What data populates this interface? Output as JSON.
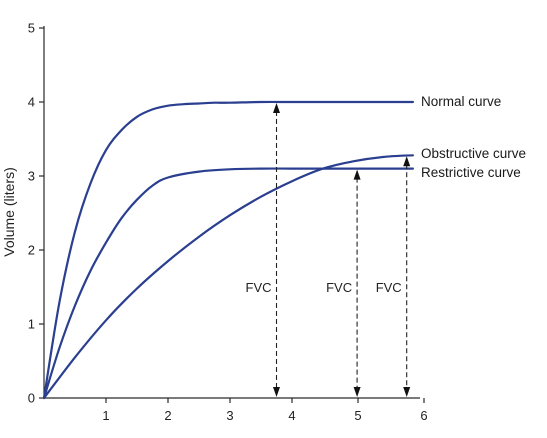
{
  "chart_data": {
    "type": "line",
    "title": "",
    "xlabel": "",
    "ylabel": "Volume (liters)",
    "xlim": [
      0,
      6
    ],
    "ylim": [
      0,
      5
    ],
    "xticks": [
      "1",
      "2",
      "3",
      "4",
      "5",
      "6"
    ],
    "yticks": [
      "0",
      "1",
      "2",
      "3",
      "4",
      "5"
    ],
    "grid": false,
    "series": [
      {
        "name": "Normal curve",
        "color": "#2a3f8f",
        "x": [
          0,
          0.25,
          0.5,
          0.75,
          1.0,
          1.25,
          1.5,
          1.75,
          2.0,
          2.25,
          2.5,
          2.75,
          3.0,
          3.5,
          4.0,
          4.5,
          5.0,
          5.5,
          5.95
        ],
        "y": [
          0,
          1.3,
          2.25,
          2.9,
          3.35,
          3.62,
          3.8,
          3.9,
          3.95,
          3.97,
          3.98,
          3.99,
          3.99,
          4.0,
          4.0,
          4.0,
          4.0,
          4.0,
          4.0
        ]
      },
      {
        "name": "Obstructive curve",
        "color": "#2a3f8f",
        "x": [
          0,
          0.5,
          1.0,
          1.5,
          2.0,
          2.5,
          3.0,
          3.5,
          4.0,
          4.5,
          5.0,
          5.5,
          5.95
        ],
        "y": [
          0,
          0.55,
          1.05,
          1.48,
          1.85,
          2.18,
          2.47,
          2.72,
          2.93,
          3.1,
          3.2,
          3.26,
          3.28
        ]
      },
      {
        "name": "Restrictive curve",
        "color": "#2a3f8f",
        "x": [
          0,
          0.25,
          0.5,
          0.75,
          1.0,
          1.25,
          1.5,
          1.75,
          2.0,
          2.5,
          3.0,
          3.5,
          4.0,
          4.5,
          5.0,
          5.5,
          5.95
        ],
        "y": [
          0,
          0.68,
          1.25,
          1.72,
          2.1,
          2.43,
          2.68,
          2.87,
          2.98,
          3.06,
          3.09,
          3.1,
          3.1,
          3.1,
          3.1,
          3.1,
          3.1
        ]
      }
    ],
    "fvc_markers": [
      {
        "label": "FVC",
        "x": 3.75,
        "y_top": 4.0
      },
      {
        "label": "FVC",
        "x": 5.05,
        "y_top": 3.1
      },
      {
        "label": "FVC",
        "x": 5.85,
        "y_top": 3.28
      }
    ]
  }
}
